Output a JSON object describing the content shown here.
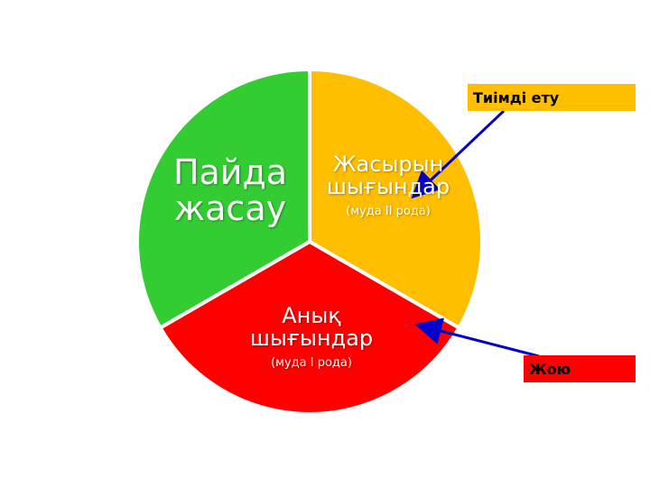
{
  "slices": [
    {
      "title": "Пайда жасау",
      "line1": "Пайда",
      "line2": "жасау",
      "color": "#33cc33"
    },
    {
      "title": "Жасырын шығындар",
      "line1": "Жасырын",
      "line2": "шығындар",
      "note": "(муда II рода)",
      "color": "#ffbf00"
    },
    {
      "title": "Анық шығындар",
      "line1": "Анық",
      "line2": "шығындар",
      "note": "(муда I рода)",
      "color": "#ff0000"
    }
  ],
  "callouts": [
    {
      "label": "Тиімді ету",
      "color": "#ffbf00",
      "target": "Жасырын шығындар"
    },
    {
      "label": "Жою",
      "color": "#ff0000",
      "target": "Анық шығындар"
    }
  ],
  "arrow_color": "#0000cc"
}
